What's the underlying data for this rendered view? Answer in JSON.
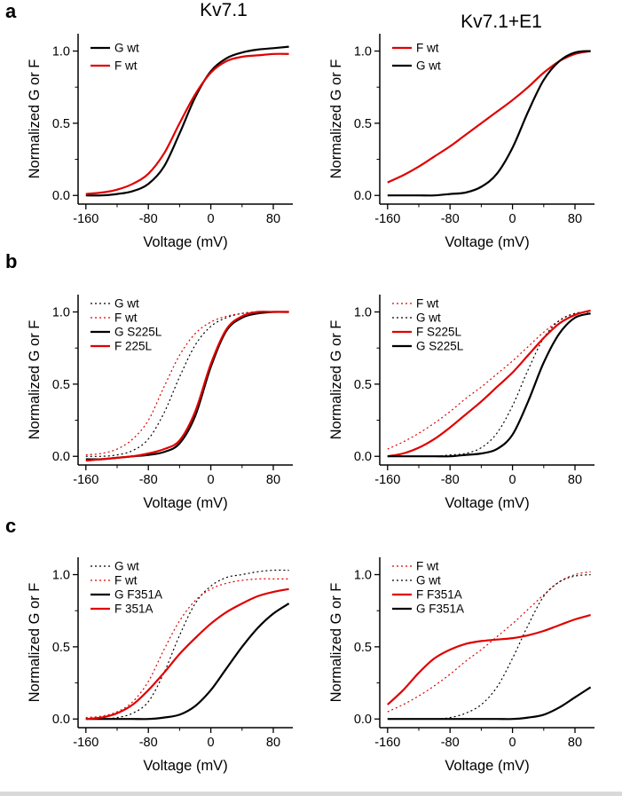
{
  "figure": {
    "row_labels": [
      "a",
      "b",
      "c"
    ],
    "column_titles": [
      "Kv7.1",
      "Kv7.1+E1"
    ]
  },
  "colors": {
    "black": "#000000",
    "red": "#e00000"
  },
  "axes": {
    "xlabel": "Voltage (mV)",
    "ylabel": "Normalized G or F",
    "xlim": [
      -170,
      105
    ],
    "ylim": [
      -0.06,
      1.12
    ],
    "x": [
      -160,
      -140,
      -120,
      -100,
      -80,
      -60,
      -40,
      -20,
      0,
      20,
      40,
      60,
      80,
      100
    ],
    "xticks": [
      -160,
      -80,
      0,
      80
    ],
    "xtick_labels": [
      "-160",
      "-80",
      "0",
      "80"
    ],
    "xminor": [
      -120,
      -40,
      40
    ],
    "yticks": [
      0.0,
      0.5,
      1.0
    ],
    "ytick_labels": [
      "0.0",
      "0.5",
      "1.0"
    ],
    "yminor": [
      0.25,
      0.75
    ],
    "grid": false,
    "legend_position": "upper-left"
  },
  "chart_data": [
    {
      "type": "line",
      "panel": "a-left",
      "title": "Kv7.1",
      "series": [
        {
          "name": "G wt",
          "color": "#000000",
          "line_style": "solid",
          "values": [
            0.0,
            0.0,
            0.01,
            0.03,
            0.08,
            0.2,
            0.43,
            0.68,
            0.86,
            0.95,
            0.99,
            1.01,
            1.02,
            1.03
          ]
        },
        {
          "name": "F wt",
          "color": "#e00000",
          "line_style": "solid",
          "values": [
            0.01,
            0.02,
            0.04,
            0.08,
            0.15,
            0.29,
            0.5,
            0.7,
            0.85,
            0.93,
            0.96,
            0.97,
            0.98,
            0.98
          ]
        }
      ]
    },
    {
      "type": "line",
      "panel": "a-right",
      "title": "Kv7.1+E1",
      "series": [
        {
          "name": "F wt",
          "color": "#e00000",
          "line_style": "solid",
          "values": [
            0.09,
            0.14,
            0.2,
            0.27,
            0.34,
            0.42,
            0.5,
            0.58,
            0.66,
            0.75,
            0.85,
            0.93,
            0.98,
            1.0
          ]
        },
        {
          "name": "G wt",
          "color": "#000000",
          "line_style": "solid",
          "values": [
            0.0,
            0.0,
            0.0,
            0.0,
            0.01,
            0.02,
            0.06,
            0.15,
            0.33,
            0.58,
            0.8,
            0.93,
            0.99,
            1.0
          ]
        }
      ]
    },
    {
      "type": "line",
      "panel": "b-left",
      "title": "",
      "series": [
        {
          "name": "G wt",
          "color": "#000000",
          "line_style": "dotted",
          "values": [
            0.0,
            0.0,
            0.01,
            0.04,
            0.12,
            0.3,
            0.55,
            0.77,
            0.9,
            0.96,
            0.99,
            1.0,
            1.0,
            1.0
          ]
        },
        {
          "name": "F wt",
          "color": "#e00000",
          "line_style": "dotted",
          "values": [
            0.01,
            0.02,
            0.05,
            0.12,
            0.25,
            0.48,
            0.7,
            0.85,
            0.93,
            0.97,
            0.99,
            1.0,
            1.0,
            1.0
          ]
        },
        {
          "name": "G S225L",
          "color": "#000000",
          "line_style": "solid",
          "values": [
            -0.02,
            -0.02,
            -0.01,
            0.0,
            0.01,
            0.03,
            0.09,
            0.28,
            0.62,
            0.87,
            0.96,
            0.99,
            1.0,
            1.0
          ]
        },
        {
          "name": "F 225L",
          "color": "#e00000",
          "line_style": "solid",
          "values": [
            -0.03,
            -0.02,
            -0.01,
            0.0,
            0.02,
            0.05,
            0.11,
            0.31,
            0.64,
            0.88,
            0.97,
            1.0,
            1.0,
            1.0
          ]
        }
      ]
    },
    {
      "type": "line",
      "panel": "b-right",
      "title": "",
      "series": [
        {
          "name": "F wt",
          "color": "#e00000",
          "line_style": "dotted",
          "values": [
            0.05,
            0.1,
            0.16,
            0.23,
            0.31,
            0.4,
            0.48,
            0.57,
            0.66,
            0.76,
            0.86,
            0.94,
            0.99,
            1.0
          ]
        },
        {
          "name": "G wt",
          "color": "#000000",
          "line_style": "dotted",
          "values": [
            0.0,
            0.0,
            0.0,
            0.0,
            0.01,
            0.02,
            0.06,
            0.16,
            0.35,
            0.6,
            0.82,
            0.94,
            0.99,
            1.0
          ]
        },
        {
          "name": "F S225L",
          "color": "#e00000",
          "line_style": "solid",
          "values": [
            0.0,
            0.02,
            0.06,
            0.12,
            0.2,
            0.29,
            0.38,
            0.48,
            0.58,
            0.7,
            0.82,
            0.92,
            0.98,
            1.01
          ]
        },
        {
          "name": "G S225L",
          "color": "#000000",
          "line_style": "solid",
          "values": [
            0.0,
            0.0,
            0.0,
            0.0,
            0.0,
            0.01,
            0.02,
            0.05,
            0.15,
            0.38,
            0.65,
            0.85,
            0.96,
            0.99
          ]
        }
      ]
    },
    {
      "type": "line",
      "panel": "c-left",
      "title": "",
      "series": [
        {
          "name": "G wt",
          "color": "#000000",
          "line_style": "dotted",
          "values": [
            0.0,
            0.0,
            0.01,
            0.04,
            0.12,
            0.32,
            0.58,
            0.8,
            0.92,
            0.98,
            1.0,
            1.02,
            1.03,
            1.03
          ]
        },
        {
          "name": "F wt",
          "color": "#e00000",
          "line_style": "dotted",
          "values": [
            0.01,
            0.02,
            0.05,
            0.12,
            0.26,
            0.48,
            0.68,
            0.82,
            0.9,
            0.94,
            0.96,
            0.97,
            0.97,
            0.97
          ]
        },
        {
          "name": "G F351A",
          "color": "#000000",
          "line_style": "solid",
          "values": [
            0.0,
            0.0,
            0.0,
            0.0,
            0.0,
            0.01,
            0.03,
            0.09,
            0.2,
            0.35,
            0.5,
            0.63,
            0.73,
            0.8
          ]
        },
        {
          "name": "F 351A",
          "color": "#e00000",
          "line_style": "solid",
          "values": [
            0.0,
            0.01,
            0.04,
            0.1,
            0.2,
            0.32,
            0.45,
            0.56,
            0.66,
            0.74,
            0.8,
            0.85,
            0.88,
            0.9
          ]
        }
      ]
    },
    {
      "type": "line",
      "panel": "c-right",
      "title": "",
      "series": [
        {
          "name": "F wt",
          "color": "#e00000",
          "line_style": "dotted",
          "values": [
            0.05,
            0.1,
            0.16,
            0.23,
            0.31,
            0.4,
            0.48,
            0.57,
            0.66,
            0.76,
            0.86,
            0.95,
            1.0,
            1.02
          ]
        },
        {
          "name": "G wt",
          "color": "#000000",
          "line_style": "dotted",
          "values": [
            0.0,
            0.0,
            0.0,
            0.0,
            0.01,
            0.04,
            0.1,
            0.22,
            0.42,
            0.65,
            0.85,
            0.95,
            0.99,
            1.0
          ]
        },
        {
          "name": "F F351A",
          "color": "#e00000",
          "line_style": "solid",
          "values": [
            0.1,
            0.2,
            0.32,
            0.42,
            0.48,
            0.52,
            0.54,
            0.55,
            0.56,
            0.58,
            0.61,
            0.65,
            0.69,
            0.72
          ]
        },
        {
          "name": "G F351A",
          "color": "#000000",
          "line_style": "solid",
          "values": [
            0.0,
            0.0,
            0.0,
            0.0,
            0.0,
            0.0,
            0.0,
            0.0,
            0.0,
            0.01,
            0.03,
            0.08,
            0.15,
            0.22
          ]
        }
      ]
    }
  ]
}
